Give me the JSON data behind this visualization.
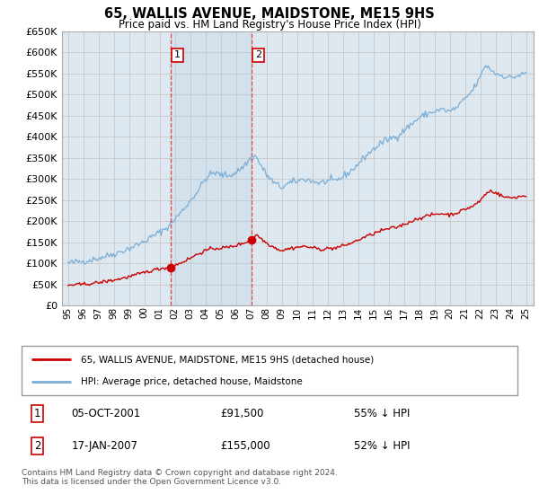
{
  "title": "65, WALLIS AVENUE, MAIDSTONE, ME15 9HS",
  "subtitle": "Price paid vs. HM Land Registry's House Price Index (HPI)",
  "ylim": [
    0,
    650000
  ],
  "yticks": [
    0,
    50000,
    100000,
    150000,
    200000,
    250000,
    300000,
    350000,
    400000,
    450000,
    500000,
    550000,
    600000,
    650000
  ],
  "background_color": "#ffffff",
  "grid_color": "#cccccc",
  "plot_bg_color": "#dde8f0",
  "hpi_line_color": "#7aaed6",
  "price_line_color": "#cc0000",
  "vline_color": "#dd4444",
  "purchase1_x": 2001.75,
  "purchase1_price": 91500,
  "purchase2_x": 2007.04,
  "purchase2_price": 155000,
  "legend_entries": [
    "65, WALLIS AVENUE, MAIDSTONE, ME15 9HS (detached house)",
    "HPI: Average price, detached house, Maidstone"
  ],
  "legend_line_colors": [
    "#cc0000",
    "#7aaed6"
  ],
  "table_rows": [
    [
      "1",
      "05-OCT-2001",
      "£91,500",
      "55% ↓ HPI"
    ],
    [
      "2",
      "17-JAN-2007",
      "£155,000",
      "52% ↓ HPI"
    ]
  ],
  "footnote": "Contains HM Land Registry data © Crown copyright and database right 2024.\nThis data is licensed under the Open Government Licence v3.0.",
  "xmin": 1994.6,
  "xmax": 2025.5,
  "hpi_keypoints": [
    [
      1995.0,
      100000
    ],
    [
      1995.5,
      103000
    ],
    [
      1996.0,
      105000
    ],
    [
      1996.5,
      108000
    ],
    [
      1997.0,
      112000
    ],
    [
      1997.5,
      117000
    ],
    [
      1998.0,
      122000
    ],
    [
      1998.5,
      128000
    ],
    [
      1999.0,
      135000
    ],
    [
      1999.5,
      143000
    ],
    [
      2000.0,
      152000
    ],
    [
      2000.5,
      163000
    ],
    [
      2001.0,
      174000
    ],
    [
      2001.5,
      185000
    ],
    [
      2002.0,
      205000
    ],
    [
      2002.5,
      225000
    ],
    [
      2003.0,
      248000
    ],
    [
      2003.5,
      272000
    ],
    [
      2004.0,
      300000
    ],
    [
      2004.5,
      315000
    ],
    [
      2005.0,
      310000
    ],
    [
      2005.5,
      308000
    ],
    [
      2006.0,
      315000
    ],
    [
      2006.5,
      330000
    ],
    [
      2007.0,
      350000
    ],
    [
      2007.3,
      355000
    ],
    [
      2007.5,
      340000
    ],
    [
      2008.0,
      310000
    ],
    [
      2008.5,
      290000
    ],
    [
      2009.0,
      280000
    ],
    [
      2009.5,
      290000
    ],
    [
      2010.0,
      295000
    ],
    [
      2010.5,
      300000
    ],
    [
      2011.0,
      295000
    ],
    [
      2011.5,
      290000
    ],
    [
      2012.0,
      295000
    ],
    [
      2012.5,
      295000
    ],
    [
      2013.0,
      305000
    ],
    [
      2013.5,
      318000
    ],
    [
      2014.0,
      335000
    ],
    [
      2014.5,
      355000
    ],
    [
      2015.0,
      370000
    ],
    [
      2015.5,
      385000
    ],
    [
      2016.0,
      395000
    ],
    [
      2016.5,
      400000
    ],
    [
      2017.0,
      415000
    ],
    [
      2017.5,
      430000
    ],
    [
      2018.0,
      445000
    ],
    [
      2018.5,
      455000
    ],
    [
      2019.0,
      460000
    ],
    [
      2019.5,
      465000
    ],
    [
      2020.0,
      460000
    ],
    [
      2020.5,
      470000
    ],
    [
      2021.0,
      490000
    ],
    [
      2021.5,
      510000
    ],
    [
      2022.0,
      540000
    ],
    [
      2022.3,
      570000
    ],
    [
      2022.7,
      560000
    ],
    [
      2023.0,
      550000
    ],
    [
      2023.5,
      545000
    ],
    [
      2024.0,
      540000
    ],
    [
      2024.5,
      545000
    ],
    [
      2025.0,
      550000
    ]
  ],
  "prop_keypoints": [
    [
      1995.0,
      48000
    ],
    [
      1995.5,
      49000
    ],
    [
      1996.0,
      50000
    ],
    [
      1996.5,
      52000
    ],
    [
      1997.0,
      54000
    ],
    [
      1997.5,
      57000
    ],
    [
      1998.0,
      60000
    ],
    [
      1998.5,
      64000
    ],
    [
      1999.0,
      68000
    ],
    [
      1999.5,
      73000
    ],
    [
      2000.0,
      78000
    ],
    [
      2000.5,
      83000
    ],
    [
      2001.0,
      87000
    ],
    [
      2001.75,
      91500
    ],
    [
      2002.0,
      95000
    ],
    [
      2002.5,
      103000
    ],
    [
      2003.0,
      112000
    ],
    [
      2003.5,
      122000
    ],
    [
      2004.0,
      130000
    ],
    [
      2004.5,
      135000
    ],
    [
      2005.0,
      136000
    ],
    [
      2005.5,
      138000
    ],
    [
      2006.0,
      142000
    ],
    [
      2006.5,
      148000
    ],
    [
      2007.04,
      155000
    ],
    [
      2007.3,
      168000
    ],
    [
      2007.5,
      163000
    ],
    [
      2008.0,
      148000
    ],
    [
      2008.5,
      138000
    ],
    [
      2009.0,
      130000
    ],
    [
      2009.5,
      135000
    ],
    [
      2010.0,
      138000
    ],
    [
      2010.5,
      140000
    ],
    [
      2011.0,
      137000
    ],
    [
      2011.5,
      133000
    ],
    [
      2012.0,
      135000
    ],
    [
      2012.5,
      136000
    ],
    [
      2013.0,
      141000
    ],
    [
      2013.5,
      147000
    ],
    [
      2014.0,
      155000
    ],
    [
      2014.5,
      163000
    ],
    [
      2015.0,
      170000
    ],
    [
      2015.5,
      177000
    ],
    [
      2016.0,
      182000
    ],
    [
      2016.5,
      185000
    ],
    [
      2017.0,
      192000
    ],
    [
      2017.5,
      200000
    ],
    [
      2018.0,
      207000
    ],
    [
      2018.5,
      212000
    ],
    [
      2019.0,
      216000
    ],
    [
      2019.5,
      218000
    ],
    [
      2020.0,
      215000
    ],
    [
      2020.5,
      220000
    ],
    [
      2021.0,
      228000
    ],
    [
      2021.5,
      235000
    ],
    [
      2022.0,
      248000
    ],
    [
      2022.3,
      263000
    ],
    [
      2022.7,
      272000
    ],
    [
      2023.0,
      268000
    ],
    [
      2023.5,
      258000
    ],
    [
      2024.0,
      255000
    ],
    [
      2024.5,
      258000
    ],
    [
      2025.0,
      260000
    ]
  ]
}
